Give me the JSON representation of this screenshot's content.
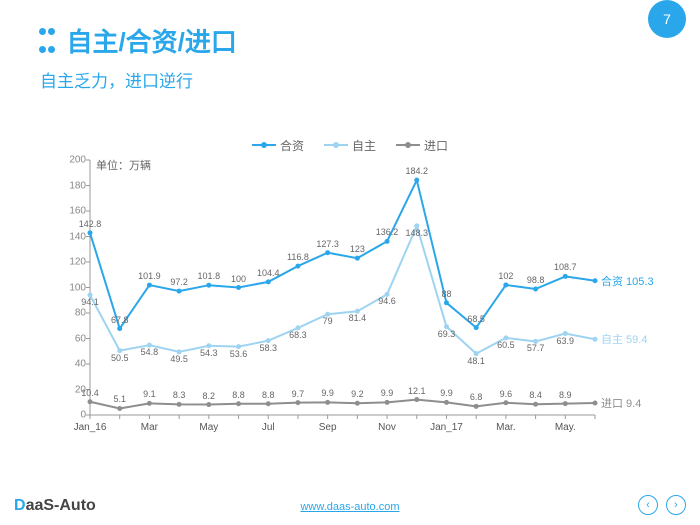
{
  "page_number": "7",
  "title": "自主/合资/进口",
  "subtitle": "自主乏力，进口逆行",
  "footer": {
    "logo_d": "D",
    "logo_rest": "aaS-Auto",
    "url": "www.daas-auto.com"
  },
  "chart": {
    "type": "line",
    "unit_label": "单位：万辆",
    "background_color": "#ffffff",
    "axis_color": "#999999",
    "grid": false,
    "ylim": [
      0,
      200
    ],
    "ytick_step": 20,
    "yticks": [
      0,
      20,
      40,
      60,
      80,
      100,
      120,
      140,
      160,
      180,
      200
    ],
    "x_categories": [
      "Jan_16",
      "",
      "Mar",
      "",
      "May",
      "",
      "Jul",
      "",
      "Sep",
      "",
      "Nov",
      "",
      "Jan_17",
      "",
      "Mar.",
      "",
      "May.",
      ""
    ],
    "x_show_labels": [
      true,
      false,
      true,
      false,
      true,
      false,
      true,
      false,
      true,
      false,
      true,
      false,
      true,
      false,
      true,
      false,
      true,
      false
    ],
    "label_fontsize": 9,
    "axis_label_fontsize": 10,
    "marker_style": "circle",
    "marker_size": 5,
    "line_width": 2,
    "series": [
      {
        "name": "合资",
        "color": "#2aa7ea",
        "values": [
          142.8,
          67.8,
          101.9,
          97.2,
          101.8,
          100.0,
          104.4,
          116.8,
          127.3,
          123.0,
          136.2,
          184.2,
          88.0,
          68.5,
          102.0,
          98.8,
          108.7,
          105.3
        ],
        "end_label": "合资 105.3"
      },
      {
        "name": "自主",
        "color": "#9ed4f1",
        "values": [
          94.1,
          50.5,
          54.8,
          49.5,
          54.3,
          53.6,
          58.3,
          68.3,
          79.0,
          81.4,
          94.6,
          148.3,
          69.3,
          48.1,
          60.5,
          57.7,
          63.9,
          59.4
        ],
        "end_label": "自主 59.4"
      },
      {
        "name": "进口",
        "color": "#8e8e8e",
        "values": [
          10.4,
          5.1,
          9.1,
          8.3,
          8.2,
          8.8,
          8.8,
          9.7,
          9.9,
          9.2,
          9.9,
          12.1,
          9.9,
          6.8,
          9.6,
          8.4,
          8.9,
          9.4
        ],
        "end_label": "进口 9.4"
      }
    ]
  }
}
